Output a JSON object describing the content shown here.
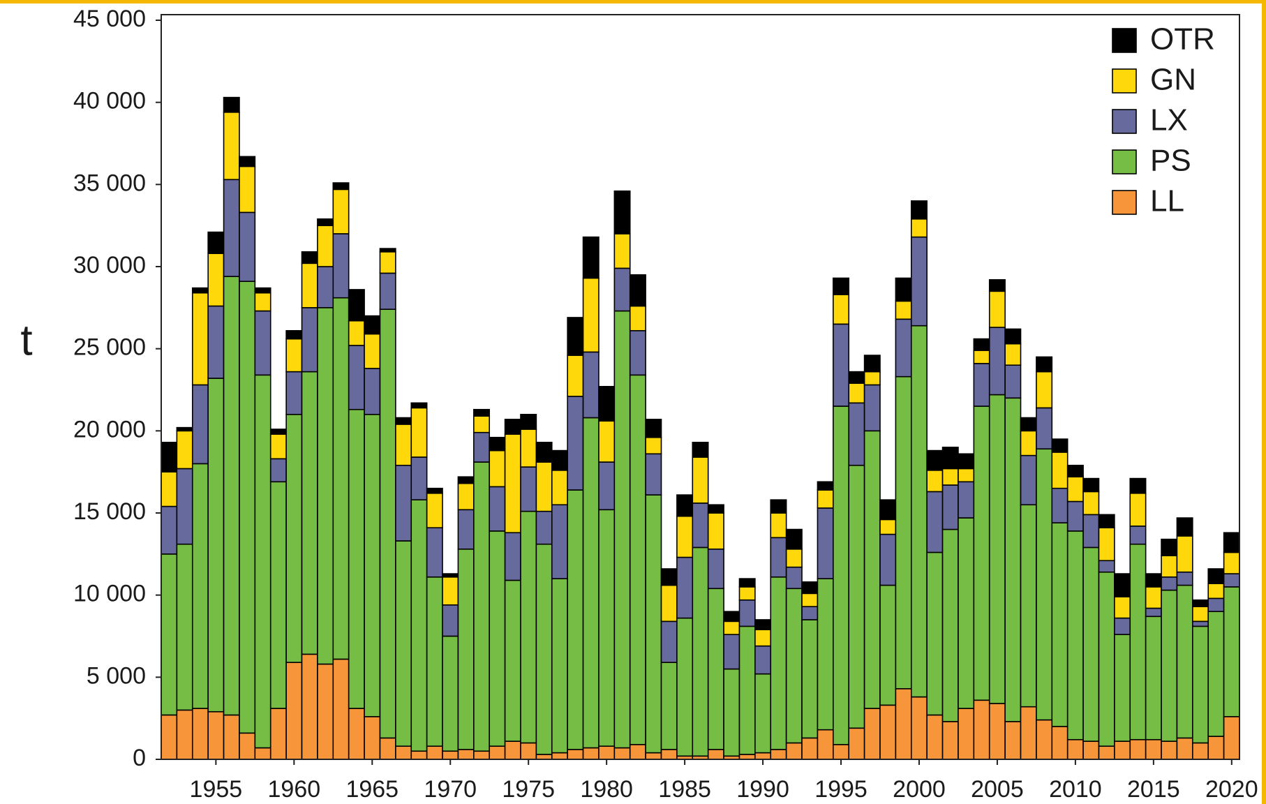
{
  "chart_data": {
    "type": "stacked_bar",
    "y_label": "t",
    "x": [
      1952,
      1953,
      1954,
      1955,
      1956,
      1957,
      1958,
      1959,
      1960,
      1961,
      1962,
      1963,
      1964,
      1965,
      1966,
      1967,
      1968,
      1969,
      1970,
      1971,
      1972,
      1973,
      1974,
      1975,
      1976,
      1977,
      1978,
      1979,
      1980,
      1981,
      1982,
      1983,
      1984,
      1985,
      1986,
      1987,
      1988,
      1989,
      1990,
      1991,
      1992,
      1993,
      1994,
      1995,
      1996,
      1997,
      1998,
      1999,
      2000,
      2001,
      2002,
      2003,
      2004,
      2005,
      2006,
      2007,
      2008,
      2009,
      2010,
      2011,
      2012,
      2013,
      2014,
      2015,
      2016,
      2017,
      2018,
      2019,
      2020
    ],
    "xlim": [
      1951.5,
      2020.5
    ],
    "xticks": [
      1955,
      1960,
      1965,
      1970,
      1975,
      1980,
      1985,
      1990,
      1995,
      2000,
      2005,
      2010,
      2015,
      2020
    ],
    "ylim": [
      0,
      45000
    ],
    "yticks": [
      0,
      {
        "value": 5000,
        "label": "5 000"
      },
      {
        "value": 10000,
        "label": "10 000"
      },
      {
        "value": 15000,
        "label": "15 000"
      },
      {
        "value": 20000,
        "label": "20 000"
      },
      {
        "value": 25000,
        "label": "25 000"
      },
      {
        "value": 30000,
        "label": "30 000"
      },
      {
        "value": 35000,
        "label": "35 000"
      },
      {
        "value": 40000,
        "label": "40 000"
      },
      {
        "value": 45000,
        "label": "45 000"
      }
    ],
    "grid": false,
    "legend": "top-right",
    "series": [
      {
        "name": "LL",
        "color": "#f7953a",
        "values": [
          2700,
          3000,
          3100,
          2900,
          2700,
          1600,
          700,
          3100,
          5900,
          6400,
          5800,
          6100,
          3100,
          2600,
          1300,
          800,
          500,
          800,
          500,
          600,
          500,
          800,
          1100,
          1000,
          300,
          400,
          600,
          700,
          800,
          700,
          900,
          400,
          600,
          200,
          200,
          600,
          200,
          300,
          400,
          600,
          1000,
          1300,
          1800,
          900,
          1900,
          3100,
          3300,
          4300,
          3800,
          2700,
          2300,
          3100,
          3600,
          3400,
          2300,
          3200,
          2400,
          2000,
          1200,
          1100,
          800,
          1100,
          1200,
          1200,
          1100,
          1300,
          1000,
          1400,
          2600
        ]
      },
      {
        "name": "PS",
        "color": "#76bd45",
        "values": [
          9800,
          10100,
          14900,
          20300,
          26700,
          27500,
          22700,
          13800,
          15100,
          17200,
          21700,
          22000,
          18200,
          18400,
          26100,
          12500,
          15300,
          10300,
          7000,
          12200,
          17600,
          13100,
          9800,
          14100,
          12800,
          10600,
          15800,
          20100,
          14400,
          26600,
          22500,
          15700,
          5300,
          8400,
          12700,
          9800,
          5300,
          7800,
          4800,
          10500,
          9400,
          7200,
          9200,
          20600,
          16000,
          16900,
          7300,
          19000,
          22600,
          9900,
          11700,
          11600,
          17900,
          18800,
          19700,
          12300,
          16500,
          12400,
          12700,
          11800,
          10600,
          6500,
          11900,
          7500,
          9200,
          9300,
          7100,
          7600,
          7900
        ]
      },
      {
        "name": "LX",
        "color": "#676a9c",
        "values": [
          2900,
          4600,
          4800,
          4400,
          5900,
          4200,
          3900,
          1400,
          2600,
          3900,
          2500,
          3900,
          3900,
          2800,
          2200,
          4600,
          2600,
          3000,
          1900,
          2400,
          1800,
          2700,
          2900,
          2700,
          2000,
          4500,
          5700,
          4000,
          2900,
          2600,
          2700,
          2500,
          2500,
          3700,
          2700,
          2400,
          2100,
          1600,
          1700,
          2400,
          1300,
          800,
          4300,
          5000,
          3800,
          2800,
          3100,
          3500,
          5400,
          3700,
          2700,
          2200,
          2600,
          4100,
          2000,
          3000,
          2500,
          2100,
          1800,
          2000,
          700,
          1000,
          1100,
          500,
          800,
          800,
          300,
          800,
          800
        ]
      },
      {
        "name": "GN",
        "color": "#fed80a",
        "values": [
          2100,
          2300,
          5600,
          3200,
          4100,
          2800,
          1100,
          1500,
          2000,
          2700,
          2500,
          2700,
          1500,
          2100,
          1300,
          2500,
          3000,
          2100,
          1700,
          1600,
          1000,
          2200,
          6000,
          2300,
          3000,
          2100,
          2500,
          4500,
          2500,
          2100,
          1500,
          1000,
          2200,
          2500,
          2800,
          2200,
          800,
          800,
          1000,
          1500,
          1100,
          800,
          1100,
          1800,
          1200,
          800,
          900,
          1100,
          1100,
          1300,
          1000,
          800,
          800,
          2200,
          1300,
          1500,
          2200,
          2200,
          1500,
          1400,
          2000,
          1300,
          2000,
          1300,
          1300,
          2200,
          900,
          900,
          1300
        ]
      },
      {
        "name": "OTR",
        "color": "#000000",
        "values": [
          1800,
          200,
          300,
          1300,
          900,
          600,
          300,
          300,
          500,
          700,
          400,
          400,
          1900,
          1100,
          200,
          400,
          300,
          300,
          200,
          400,
          400,
          800,
          900,
          900,
          1200,
          1200,
          2300,
          2500,
          2100,
          2600,
          1900,
          1100,
          1000,
          1300,
          900,
          500,
          600,
          500,
          600,
          800,
          1200,
          700,
          500,
          1000,
          700,
          1000,
          1200,
          1400,
          1100,
          1200,
          1300,
          900,
          700,
          700,
          900,
          800,
          900,
          800,
          700,
          800,
          800,
          1400,
          900,
          800,
          1000,
          1100,
          400,
          900,
          1200
        ]
      }
    ]
  }
}
